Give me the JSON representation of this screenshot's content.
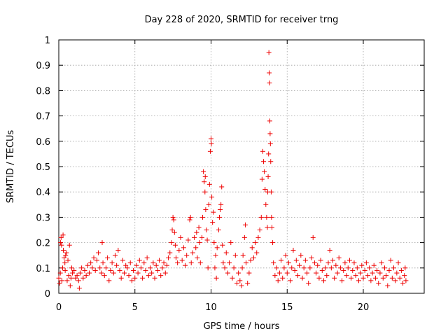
{
  "chart_data": {
    "type": "scatter",
    "title": "Day 228 of 2020, SRMTID for receiver trng",
    "xlabel": "GPS time / hours",
    "ylabel": "SRMTID / TECUs",
    "xlim": [
      0,
      24
    ],
    "ylim": [
      0,
      1
    ],
    "xticks": [
      0,
      5,
      10,
      15,
      20
    ],
    "xtick_labels": [
      "0",
      "5",
      "10",
      "15",
      "20"
    ],
    "yticks": [
      0,
      0.1,
      0.2,
      0.3,
      0.4,
      0.5,
      0.6,
      0.7,
      0.8,
      0.9,
      1
    ],
    "ytick_labels": [
      "0",
      "0.1",
      "0.2",
      "0.3",
      "0.4",
      "0.5",
      "0.6",
      "0.7",
      "0.8",
      "0.9",
      "1"
    ],
    "grid": true,
    "marker": "+",
    "series": [
      {
        "name": "SRMTID",
        "color": "#ee0000",
        "points": [
          [
            0.0,
            0.06
          ],
          [
            0.05,
            0.04
          ],
          [
            0.1,
            0.08
          ],
          [
            0.12,
            0.2
          ],
          [
            0.15,
            0.22
          ],
          [
            0.18,
            0.19
          ],
          [
            0.2,
            0.05
          ],
          [
            0.25,
            0.1
          ],
          [
            0.28,
            0.23
          ],
          [
            0.3,
            0.17
          ],
          [
            0.35,
            0.14
          ],
          [
            0.4,
            0.12
          ],
          [
            0.42,
            0.09
          ],
          [
            0.45,
            0.15
          ],
          [
            0.5,
            0.16
          ],
          [
            0.55,
            0.05
          ],
          [
            0.6,
            0.13
          ],
          [
            0.65,
            0.07
          ],
          [
            0.7,
            0.19
          ],
          [
            0.75,
            0.03
          ],
          [
            0.8,
            0.06
          ],
          [
            0.85,
            0.1
          ],
          [
            0.9,
            0.08
          ],
          [
            1.0,
            0.09
          ],
          [
            1.1,
            0.06
          ],
          [
            1.2,
            0.07
          ],
          [
            1.3,
            0.05
          ],
          [
            1.35,
            0.02
          ],
          [
            1.4,
            0.08
          ],
          [
            1.5,
            0.1
          ],
          [
            1.6,
            0.06
          ],
          [
            1.7,
            0.09
          ],
          [
            1.8,
            0.07
          ],
          [
            1.9,
            0.11
          ],
          [
            2.0,
            0.08
          ],
          [
            2.1,
            0.12
          ],
          [
            2.2,
            0.1
          ],
          [
            2.3,
            0.14
          ],
          [
            2.4,
            0.09
          ],
          [
            2.5,
            0.13
          ],
          [
            2.6,
            0.16
          ],
          [
            2.7,
            0.1
          ],
          [
            2.8,
            0.08
          ],
          [
            2.85,
            0.2
          ],
          [
            2.9,
            0.12
          ],
          [
            3.0,
            0.07
          ],
          [
            3.1,
            0.1
          ],
          [
            3.2,
            0.14
          ],
          [
            3.3,
            0.05
          ],
          [
            3.4,
            0.09
          ],
          [
            3.5,
            0.12
          ],
          [
            3.6,
            0.08
          ],
          [
            3.7,
            0.15
          ],
          [
            3.8,
            0.11
          ],
          [
            3.9,
            0.17
          ],
          [
            4.0,
            0.09
          ],
          [
            4.1,
            0.06
          ],
          [
            4.2,
            0.13
          ],
          [
            4.3,
            0.08
          ],
          [
            4.4,
            0.11
          ],
          [
            4.5,
            0.1
          ],
          [
            4.6,
            0.07
          ],
          [
            4.7,
            0.12
          ],
          [
            4.8,
            0.05
          ],
          [
            4.9,
            0.09
          ],
          [
            5.0,
            0.06
          ],
          [
            5.1,
            0.11
          ],
          [
            5.2,
            0.08
          ],
          [
            5.3,
            0.13
          ],
          [
            5.4,
            0.1
          ],
          [
            5.5,
            0.06
          ],
          [
            5.6,
            0.12
          ],
          [
            5.7,
            0.09
          ],
          [
            5.8,
            0.14
          ],
          [
            5.9,
            0.07
          ],
          [
            6.0,
            0.1
          ],
          [
            6.1,
            0.08
          ],
          [
            6.2,
            0.12
          ],
          [
            6.3,
            0.06
          ],
          [
            6.4,
            0.11
          ],
          [
            6.5,
            0.09
          ],
          [
            6.6,
            0.13
          ],
          [
            6.7,
            0.07
          ],
          [
            6.8,
            0.1
          ],
          [
            6.9,
            0.12
          ],
          [
            7.0,
            0.08
          ],
          [
            7.1,
            0.11
          ],
          [
            7.2,
            0.14
          ],
          [
            7.3,
            0.16
          ],
          [
            7.4,
            0.2
          ],
          [
            7.45,
            0.25
          ],
          [
            7.5,
            0.3
          ],
          [
            7.55,
            0.29
          ],
          [
            7.6,
            0.24
          ],
          [
            7.65,
            0.19
          ],
          [
            7.7,
            0.14
          ],
          [
            7.8,
            0.12
          ],
          [
            7.9,
            0.17
          ],
          [
            8.0,
            0.22
          ],
          [
            8.1,
            0.13
          ],
          [
            8.2,
            0.18
          ],
          [
            8.3,
            0.11
          ],
          [
            8.4,
            0.15
          ],
          [
            8.5,
            0.21
          ],
          [
            8.6,
            0.29
          ],
          [
            8.65,
            0.3
          ],
          [
            8.7,
            0.12
          ],
          [
            8.8,
            0.16
          ],
          [
            8.9,
            0.22
          ],
          [
            9.0,
            0.18
          ],
          [
            9.05,
            0.24
          ],
          [
            9.1,
            0.14
          ],
          [
            9.2,
            0.26
          ],
          [
            9.25,
            0.2
          ],
          [
            9.3,
            0.12
          ],
          [
            9.4,
            0.22
          ],
          [
            9.45,
            0.3
          ],
          [
            9.5,
            0.48
          ],
          [
            9.55,
            0.44
          ],
          [
            9.6,
            0.4
          ],
          [
            9.62,
            0.46
          ],
          [
            9.65,
            0.33
          ],
          [
            9.7,
            0.25
          ],
          [
            9.75,
            0.21
          ],
          [
            9.8,
            0.1
          ],
          [
            9.85,
            0.35
          ],
          [
            9.9,
            0.43
          ],
          [
            9.95,
            0.56
          ],
          [
            10.0,
            0.61
          ],
          [
            10.02,
            0.59
          ],
          [
            10.05,
            0.38
          ],
          [
            10.1,
            0.28
          ],
          [
            10.15,
            0.32
          ],
          [
            10.2,
            0.2
          ],
          [
            10.25,
            0.1
          ],
          [
            10.3,
            0.15
          ],
          [
            10.35,
            0.06
          ],
          [
            10.4,
            0.18
          ],
          [
            10.5,
            0.25
          ],
          [
            10.55,
            0.3
          ],
          [
            10.6,
            0.33
          ],
          [
            10.65,
            0.35
          ],
          [
            10.7,
            0.42
          ],
          [
            10.75,
            0.19
          ],
          [
            10.8,
            0.12
          ],
          [
            10.9,
            0.1
          ],
          [
            11.0,
            0.16
          ],
          [
            11.1,
            0.08
          ],
          [
            11.2,
            0.12
          ],
          [
            11.3,
            0.2
          ],
          [
            11.4,
            0.06
          ],
          [
            11.5,
            0.1
          ],
          [
            11.6,
            0.15
          ],
          [
            11.7,
            0.04
          ],
          [
            11.8,
            0.08
          ],
          [
            11.9,
            0.05
          ],
          [
            12.0,
            0.03
          ],
          [
            12.05,
            0.1
          ],
          [
            12.1,
            0.15
          ],
          [
            12.2,
            0.22
          ],
          [
            12.25,
            0.27
          ],
          [
            12.3,
            0.12
          ],
          [
            12.4,
            0.04
          ],
          [
            12.5,
            0.08
          ],
          [
            12.6,
            0.13
          ],
          [
            12.7,
            0.18
          ],
          [
            12.8,
            0.14
          ],
          [
            12.9,
            0.2
          ],
          [
            13.0,
            0.16
          ],
          [
            13.1,
            0.22
          ],
          [
            13.2,
            0.25
          ],
          [
            13.3,
            0.3
          ],
          [
            13.35,
            0.45
          ],
          [
            13.4,
            0.56
          ],
          [
            13.45,
            0.52
          ],
          [
            13.5,
            0.48
          ],
          [
            13.55,
            0.41
          ],
          [
            13.6,
            0.35
          ],
          [
            13.65,
            0.3
          ],
          [
            13.7,
            0.26
          ],
          [
            13.72,
            0.4
          ],
          [
            13.75,
            0.46
          ],
          [
            13.78,
            0.55
          ],
          [
            13.8,
            0.95
          ],
          [
            13.82,
            0.87
          ],
          [
            13.84,
            0.83
          ],
          [
            13.86,
            0.68
          ],
          [
            13.88,
            0.63
          ],
          [
            13.9,
            0.59
          ],
          [
            13.92,
            0.52
          ],
          [
            13.95,
            0.4
          ],
          [
            13.97,
            0.3
          ],
          [
            14.0,
            0.26
          ],
          [
            14.05,
            0.2
          ],
          [
            14.1,
            0.12
          ],
          [
            14.2,
            0.07
          ],
          [
            14.3,
            0.1
          ],
          [
            14.4,
            0.05
          ],
          [
            14.5,
            0.08
          ],
          [
            14.6,
            0.13
          ],
          [
            14.7,
            0.06
          ],
          [
            14.8,
            0.1
          ],
          [
            14.9,
            0.15
          ],
          [
            15.0,
            0.08
          ],
          [
            15.1,
            0.12
          ],
          [
            15.2,
            0.05
          ],
          [
            15.3,
            0.1
          ],
          [
            15.4,
            0.17
          ],
          [
            15.5,
            0.09
          ],
          [
            15.6,
            0.13
          ],
          [
            15.7,
            0.07
          ],
          [
            15.8,
            0.11
          ],
          [
            15.9,
            0.15
          ],
          [
            16.0,
            0.06
          ],
          [
            16.1,
            0.1
          ],
          [
            16.2,
            0.13
          ],
          [
            16.3,
            0.08
          ],
          [
            16.4,
            0.04
          ],
          [
            16.5,
            0.1
          ],
          [
            16.6,
            0.14
          ],
          [
            16.7,
            0.22
          ],
          [
            16.8,
            0.12
          ],
          [
            16.9,
            0.08
          ],
          [
            17.0,
            0.11
          ],
          [
            17.1,
            0.06
          ],
          [
            17.2,
            0.13
          ],
          [
            17.3,
            0.09
          ],
          [
            17.4,
            0.05
          ],
          [
            17.5,
            0.1
          ],
          [
            17.6,
            0.07
          ],
          [
            17.7,
            0.12
          ],
          [
            17.8,
            0.17
          ],
          [
            17.9,
            0.1
          ],
          [
            18.0,
            0.13
          ],
          [
            18.1,
            0.06
          ],
          [
            18.2,
            0.11
          ],
          [
            18.3,
            0.08
          ],
          [
            18.4,
            0.14
          ],
          [
            18.5,
            0.1
          ],
          [
            18.6,
            0.05
          ],
          [
            18.7,
            0.09
          ],
          [
            18.8,
            0.12
          ],
          [
            18.9,
            0.07
          ],
          [
            19.0,
            0.1
          ],
          [
            19.1,
            0.13
          ],
          [
            19.2,
            0.06
          ],
          [
            19.3,
            0.09
          ],
          [
            19.4,
            0.12
          ],
          [
            19.5,
            0.07
          ],
          [
            19.6,
            0.1
          ],
          [
            19.7,
            0.05
          ],
          [
            19.8,
            0.08
          ],
          [
            19.9,
            0.11
          ],
          [
            20.0,
            0.06
          ],
          [
            20.1,
            0.09
          ],
          [
            20.2,
            0.12
          ],
          [
            20.3,
            0.07
          ],
          [
            20.4,
            0.1
          ],
          [
            20.5,
            0.05
          ],
          [
            20.6,
            0.08
          ],
          [
            20.7,
            0.11
          ],
          [
            20.8,
            0.06
          ],
          [
            20.9,
            0.09
          ],
          [
            21.0,
            0.04
          ],
          [
            21.1,
            0.08
          ],
          [
            21.2,
            0.12
          ],
          [
            21.3,
            0.06
          ],
          [
            21.4,
            0.1
          ],
          [
            21.5,
            0.07
          ],
          [
            21.6,
            0.03
          ],
          [
            21.7,
            0.09
          ],
          [
            21.8,
            0.13
          ],
          [
            21.9,
            0.06
          ],
          [
            22.0,
            0.1
          ],
          [
            22.1,
            0.05
          ],
          [
            22.2,
            0.08
          ],
          [
            22.3,
            0.12
          ],
          [
            22.4,
            0.06
          ],
          [
            22.5,
            0.09
          ],
          [
            22.6,
            0.04
          ],
          [
            22.7,
            0.07
          ],
          [
            22.75,
            0.1
          ],
          [
            22.8,
            0.05
          ]
        ]
      }
    ]
  }
}
